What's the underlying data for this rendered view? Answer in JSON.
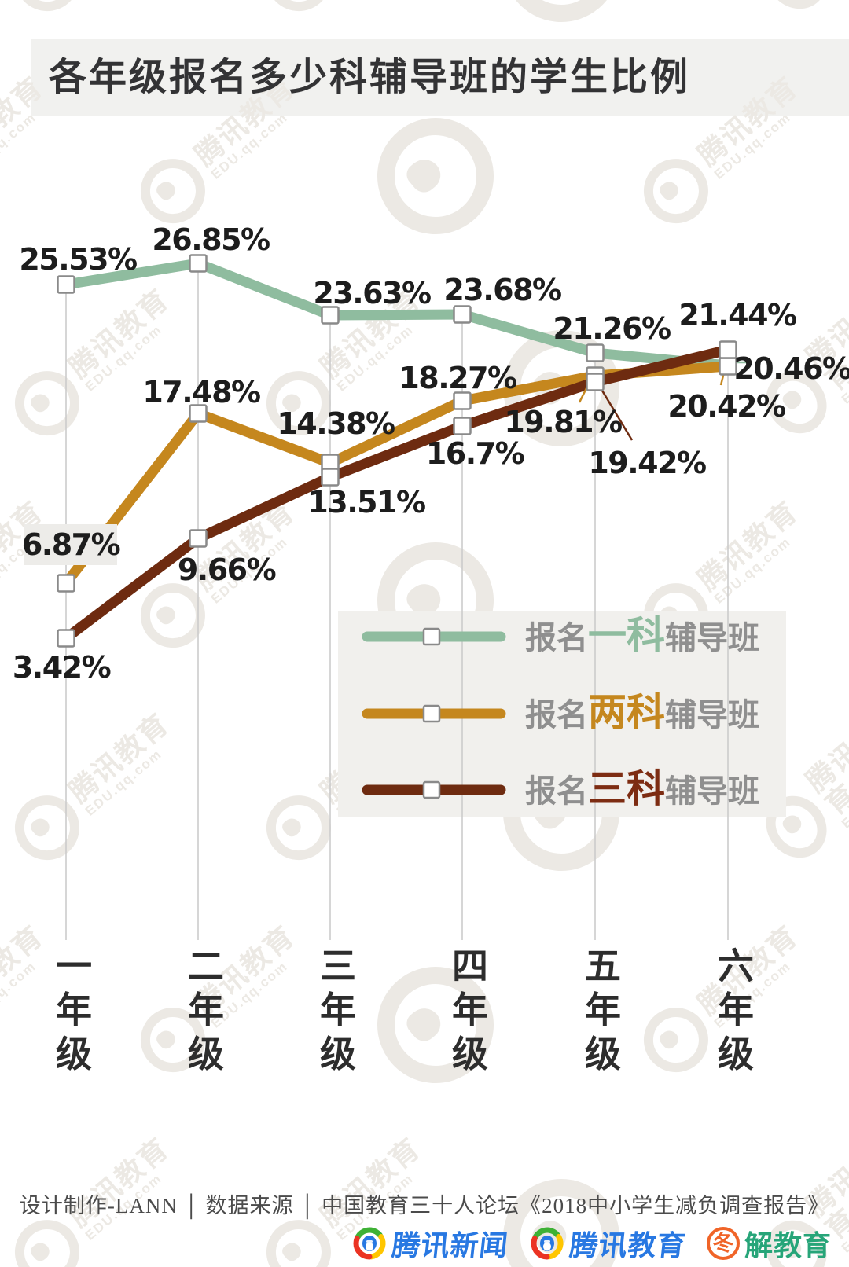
{
  "title": "各年级报名多少科辅导班的学生比例",
  "watermark": {
    "cn": "腾讯教育",
    "en": "EDU.qq.com"
  },
  "chart_data": {
    "type": "line",
    "categories": [
      "一年级",
      "二年级",
      "三年级",
      "四年级",
      "五年级",
      "六年级"
    ],
    "series": [
      {
        "name": "报名一科辅导班",
        "color": "#8fbc9f",
        "values": [
          25.53,
          26.85,
          23.63,
          23.68,
          21.26,
          20.46
        ],
        "labels": [
          "25.53%",
          "26.85%",
          "23.63%",
          "23.68%",
          "21.26%",
          "20.46%"
        ]
      },
      {
        "name": "报名两科辅导班",
        "color": "#c5871e",
        "values": [
          6.87,
          17.48,
          14.38,
          18.27,
          19.81,
          20.42
        ],
        "labels": [
          "6.87%",
          "17.48%",
          "14.38%",
          "18.27%",
          "19.81%",
          "20.42%"
        ]
      },
      {
        "name": "报名三科辅导班",
        "color": "#6e2b10",
        "values": [
          3.42,
          9.66,
          13.51,
          16.7,
          19.42,
          21.44
        ],
        "labels": [
          "3.42%",
          "9.66%",
          "13.51%",
          "16.7%",
          "19.42%",
          "21.44%"
        ]
      }
    ],
    "legend": [
      {
        "prefix": "报名",
        "subject": "一科",
        "suffix": "辅导班",
        "subject_color": "#8fbc9f"
      },
      {
        "prefix": "报名",
        "subject": "两科",
        "suffix": "辅导班",
        "subject_color": "#c5871e"
      },
      {
        "prefix": "报名",
        "subject": "三科",
        "suffix": "辅导班",
        "subject_color": "#7d2c12"
      }
    ],
    "ylim": [
      0,
      30
    ],
    "xlabel": "",
    "ylabel": "",
    "grid": "vertical-drop-lines",
    "legend_position": "inside-middle-right"
  },
  "footer": {
    "credit": "设计制作-LANN │ 数据来源 │ 中国教育三十人论坛《2018中小学生减负调查报告》"
  },
  "logos": [
    {
      "name": "腾讯新闻",
      "type": "tencent-news"
    },
    {
      "name": "腾讯教育",
      "type": "tencent-edu"
    },
    {
      "name": "冬解教育",
      "parts": [
        "冬",
        "解教育"
      ],
      "colors": [
        "#f06428",
        "#27a579"
      ]
    }
  ]
}
